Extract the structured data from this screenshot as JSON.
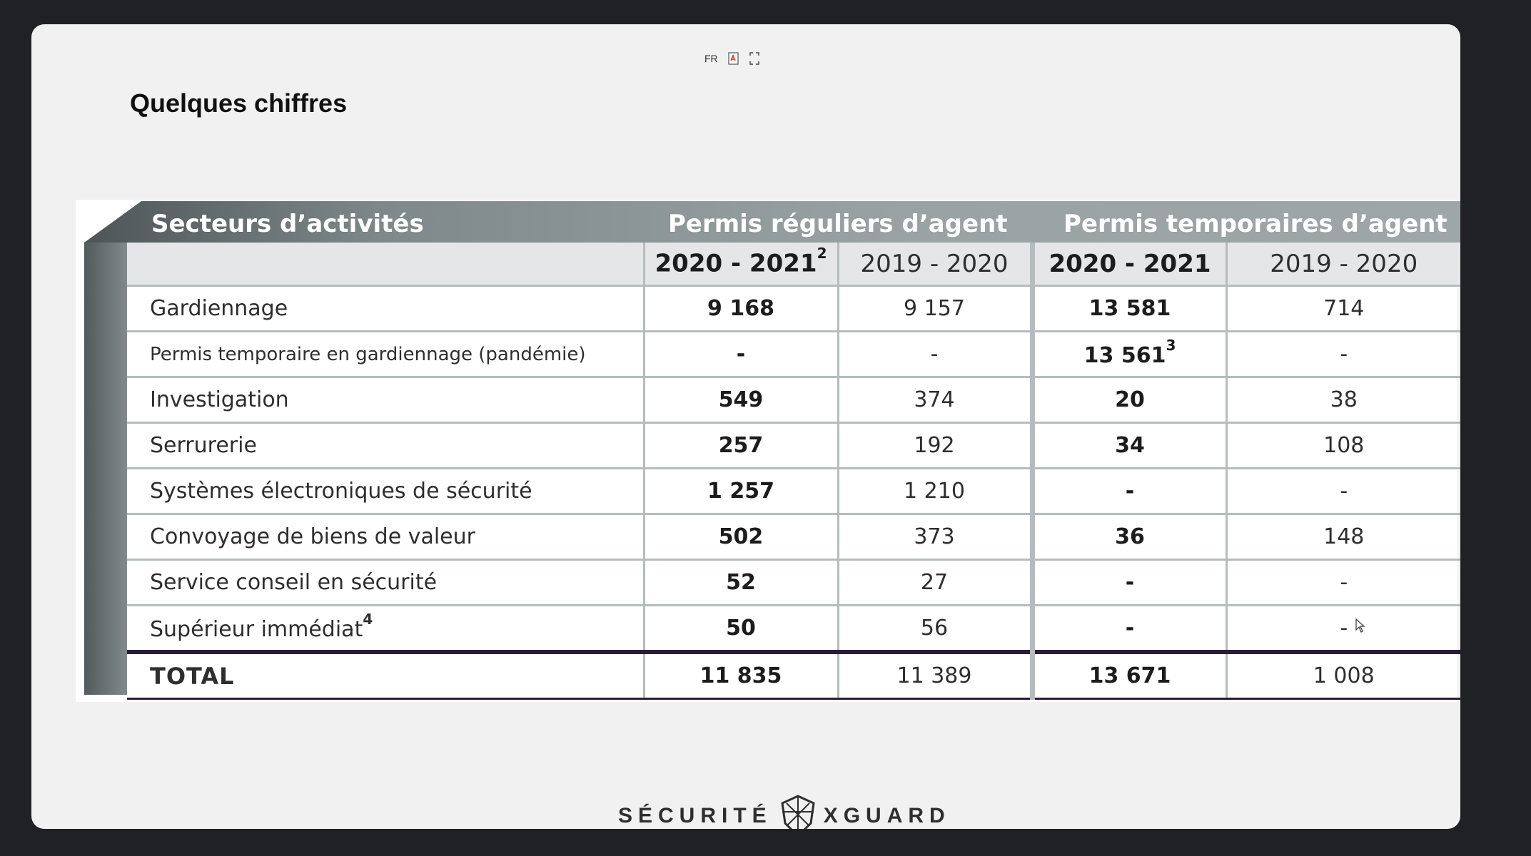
{
  "toolbar": {
    "lang_label": "FR"
  },
  "slide": {
    "title": "Quelques chiffres"
  },
  "table": {
    "col_sector": "Secteurs d’activités",
    "group_regular": "Permis réguliers d’agent",
    "group_temporary": "Permis temporaires d’agent",
    "years": [
      {
        "label": "2020 - 2021",
        "footnote": "2",
        "bold": true
      },
      {
        "label": "2019 - 2020",
        "footnote": "",
        "bold": false
      },
      {
        "label": "2020 - 2021",
        "footnote": "",
        "bold": true
      },
      {
        "label": "2019 - 2020",
        "footnote": "",
        "bold": false
      }
    ],
    "rows": [
      {
        "sector": "Gardiennage",
        "sector_fn": "",
        "reg_2021": "9 168",
        "reg_2020": "9 157",
        "tmp_2021": "13 581",
        "tmp_2021_fn": "",
        "tmp_2020": "714"
      },
      {
        "sector": "Permis temporaire en gardiennage (pandémie)",
        "sector_fn": "",
        "reg_2021": "-",
        "reg_2020": "-",
        "tmp_2021": "13 561",
        "tmp_2021_fn": "3",
        "tmp_2020": "-"
      },
      {
        "sector": "Investigation",
        "sector_fn": "",
        "reg_2021": "549",
        "reg_2020": "374",
        "tmp_2021": "20",
        "tmp_2021_fn": "",
        "tmp_2020": "38"
      },
      {
        "sector": "Serrurerie",
        "sector_fn": "",
        "reg_2021": "257",
        "reg_2020": "192",
        "tmp_2021": "34",
        "tmp_2021_fn": "",
        "tmp_2020": "108"
      },
      {
        "sector": "Systèmes électroniques de sécurité",
        "sector_fn": "",
        "reg_2021": "1 257",
        "reg_2020": "1 210",
        "tmp_2021": "-",
        "tmp_2021_fn": "",
        "tmp_2020": "-"
      },
      {
        "sector": "Convoyage de biens de valeur",
        "sector_fn": "",
        "reg_2021": "502",
        "reg_2020": "373",
        "tmp_2021": "36",
        "tmp_2021_fn": "",
        "tmp_2020": "148"
      },
      {
        "sector": "Service conseil en sécurité",
        "sector_fn": "",
        "reg_2021": "52",
        "reg_2020": "27",
        "tmp_2021": "-",
        "tmp_2021_fn": "",
        "tmp_2020": "-"
      },
      {
        "sector": "Supérieur immédiat",
        "sector_fn": "4",
        "reg_2021": "50",
        "reg_2020": "56",
        "tmp_2021": "-",
        "tmp_2021_fn": "",
        "tmp_2020": "-"
      }
    ],
    "total": {
      "label": "TOTAL",
      "reg_2021": "11 835",
      "reg_2020": "11 389",
      "tmp_2021": "13 671",
      "tmp_2020": "1 008"
    }
  },
  "logo": {
    "left_text": "SÉCURITÉ",
    "right_text": "XGUARD"
  },
  "colors": {
    "page_bg": "#202124",
    "slide_bg": "#f1f1f1",
    "header_band": "#9aa2a4",
    "total_rule": "#2a1c35"
  }
}
